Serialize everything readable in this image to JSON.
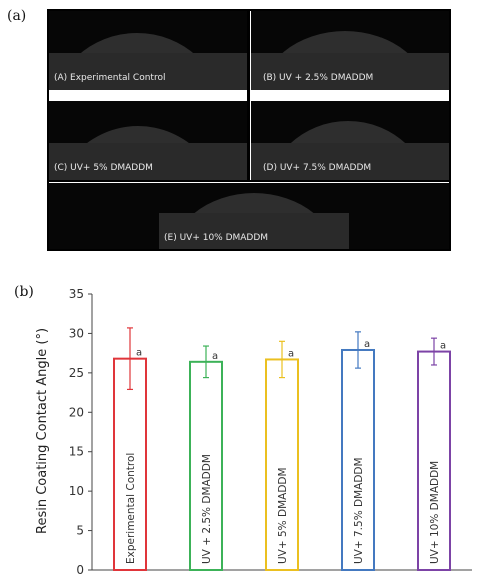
{
  "panel_labels": {
    "a": "(a)",
    "b": "(b)"
  },
  "photos": [
    {
      "id": "A",
      "label": "(A) Experimental Control"
    },
    {
      "id": "B",
      "label": "(B) UV + 2.5% DMADDM"
    },
    {
      "id": "C",
      "label": "(C) UV+ 5% DMADDM"
    },
    {
      "id": "D",
      "label": "(D) UV+ 7.5% DMADDM"
    },
    {
      "id": "E",
      "label": "(E) UV+ 10% DMADDM"
    }
  ],
  "chart_data": {
    "type": "bar",
    "title": "",
    "xlabel": "",
    "ylabel": "Resin Coating Contact Angle (°)",
    "ylim": [
      0,
      35
    ],
    "yticks": [
      0,
      5,
      10,
      15,
      20,
      25,
      30,
      35
    ],
    "grid": false,
    "bar_fill": "none",
    "categories": [
      "Experimental Control",
      "UV + 2.5% DMADDM",
      "UV+ 5% DMADDM",
      "UV+ 7.5% DMADDM",
      "UV+ 10% DMADDM"
    ],
    "values": [
      26.8,
      26.4,
      26.7,
      27.9,
      27.7
    ],
    "errors": [
      3.9,
      2.0,
      2.3,
      2.3,
      1.7
    ],
    "significance_letters": [
      "a",
      "a",
      "a",
      "a",
      "a"
    ],
    "colors": [
      "#e0353a",
      "#3cb258",
      "#ebc020",
      "#4479c0",
      "#7c43a6"
    ]
  }
}
